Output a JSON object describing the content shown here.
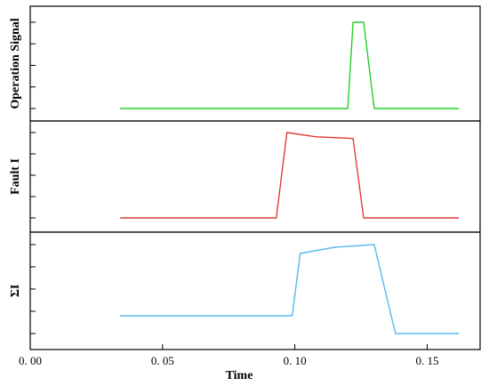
{
  "chart_data": {
    "type": "line",
    "xlabel": "Time",
    "xlim": [
      0.0,
      0.17
    ],
    "xticks": [
      "0. 00",
      "0. 05",
      "0. 10",
      "0. 15"
    ],
    "xtick_values": [
      0.0,
      0.05,
      0.1,
      0.15
    ],
    "grid": false,
    "panels": [
      {
        "ylabel": "Operation Signal",
        "ylim": [
          0,
          1
        ],
        "ytick_count": 5,
        "color": "#22d02a",
        "series": [
          {
            "x": [
              0.034,
              0.12,
              0.122,
              0.126,
              0.13,
              0.162
            ],
            "y": [
              0.0,
              0.0,
              1.0,
              1.0,
              0.0,
              0.0
            ]
          }
        ]
      },
      {
        "ylabel": "Fault I",
        "ylim": [
          0,
          1
        ],
        "ytick_count": 5,
        "color": "#e03a3a",
        "series": [
          {
            "x": [
              0.034,
              0.093,
              0.097,
              0.108,
              0.122,
              0.126,
              0.162
            ],
            "y": [
              0.0,
              0.0,
              1.0,
              0.95,
              0.93,
              0.0,
              0.0
            ]
          }
        ]
      },
      {
        "ylabel": "ΣI",
        "ylim": [
          0,
          1
        ],
        "ytick_count": 5,
        "color": "#58b8ef",
        "series": [
          {
            "x": [
              0.034,
              0.099,
              0.102,
              0.115,
              0.13,
              0.138,
              0.162
            ],
            "y": [
              0.2,
              0.2,
              0.9,
              0.97,
              1.0,
              0.0,
              0.0
            ]
          }
        ]
      }
    ]
  }
}
